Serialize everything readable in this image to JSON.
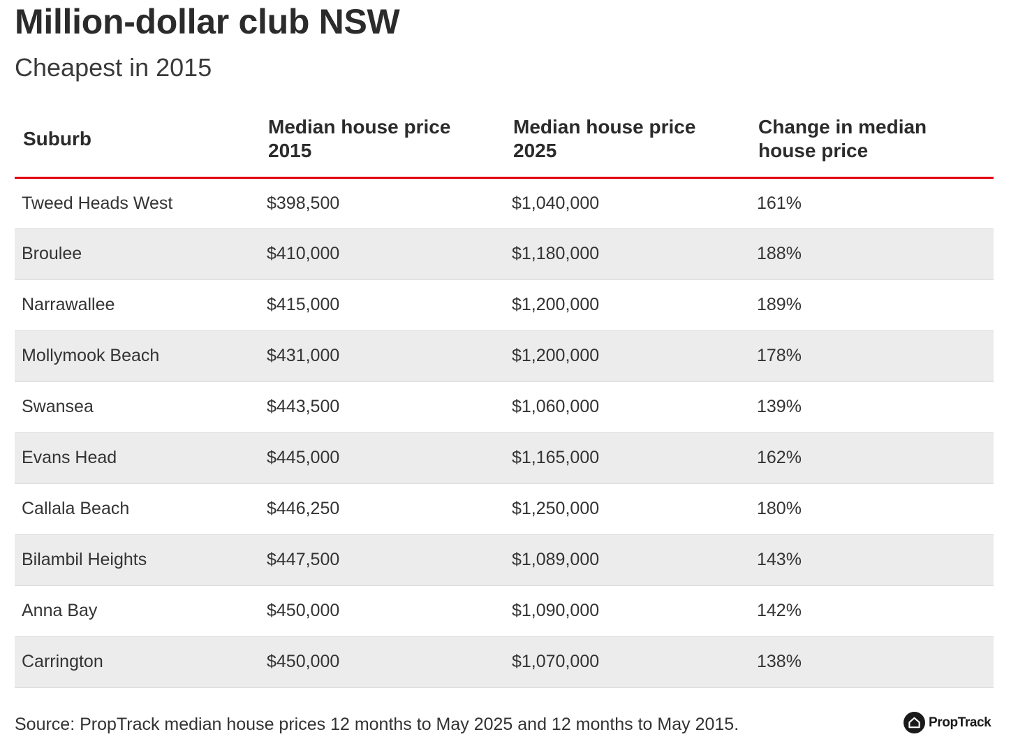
{
  "chart_data": {
    "type": "table",
    "title": "Million-dollar club NSW",
    "subtitle": "Cheapest in 2015",
    "columns": [
      "Suburb",
      "Median house price 2015",
      "Median house price 2025",
      "Change in median house price"
    ],
    "rows": [
      [
        "Tweed Heads West",
        "$398,500",
        "$1,040,000",
        "161%"
      ],
      [
        "Broulee",
        "$410,000",
        "$1,180,000",
        "188%"
      ],
      [
        "Narrawallee",
        "$415,000",
        "$1,200,000",
        "189%"
      ],
      [
        "Mollymook Beach",
        "$431,000",
        "$1,200,000",
        "178%"
      ],
      [
        "Swansea",
        "$443,500",
        "$1,060,000",
        "139%"
      ],
      [
        "Evans Head",
        "$445,000",
        "$1,165,000",
        "162%"
      ],
      [
        "Callala Beach",
        "$446,250",
        "$1,250,000",
        "180%"
      ],
      [
        "Bilambil Heights",
        "$447,500",
        "$1,089,000",
        "143%"
      ],
      [
        "Anna Bay",
        "$450,000",
        "$1,090,000",
        "142%"
      ],
      [
        "Carrington",
        "$450,000",
        "$1,070,000",
        "138%"
      ]
    ],
    "source": "Source: PropTrack median house prices 12 months to May 2025 and 12 months to May 2015."
  },
  "branding": {
    "logo_text": "PropTrack",
    "logo_icon": "house-icon"
  },
  "colors": {
    "header_rule": "#e3000f",
    "stripe": "#ececec",
    "text": "#333333"
  }
}
